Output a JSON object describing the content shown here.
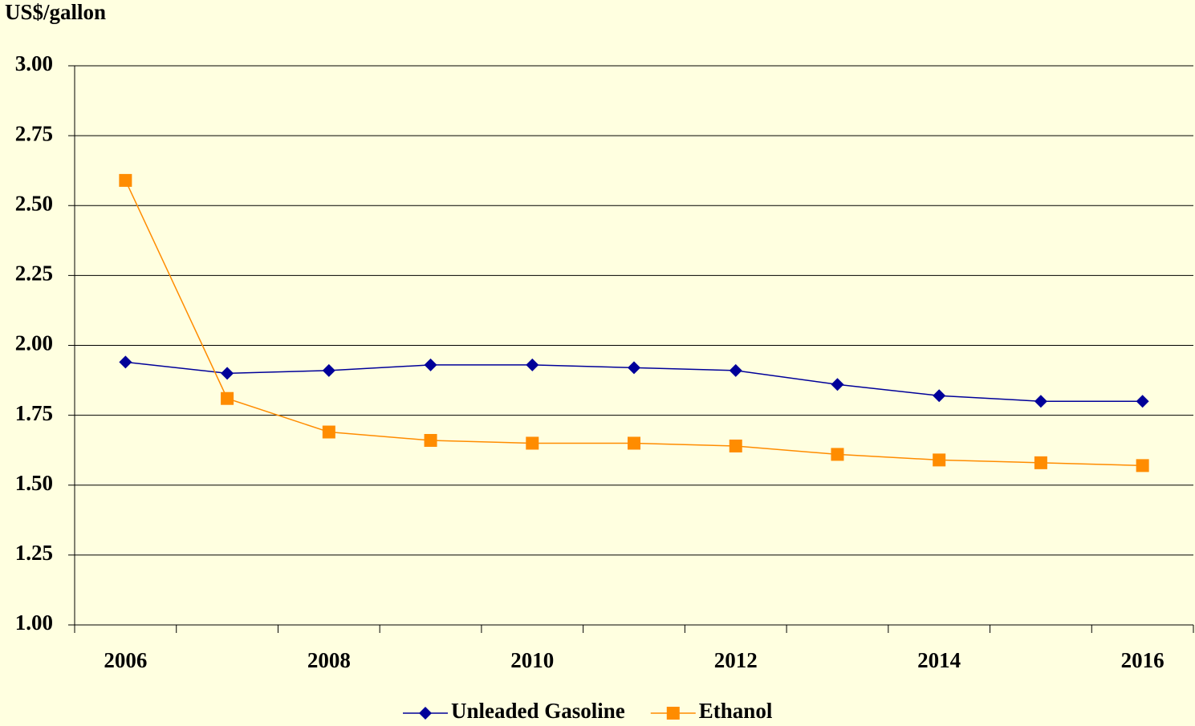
{
  "chart_data": {
    "type": "line",
    "y_label": "US$/gallon",
    "categories": [
      "2006",
      null,
      "2008",
      null,
      "2010",
      null,
      "2012",
      null,
      "2014",
      null,
      "2016"
    ],
    "series": [
      {
        "name": "Unleaded Gasoline",
        "color": "#000099",
        "marker": "diamond",
        "values": [
          1.94,
          1.9,
          1.91,
          1.93,
          1.93,
          1.92,
          1.91,
          1.86,
          1.82,
          1.8,
          1.8
        ]
      },
      {
        "name": "Ethanol",
        "color": "#ff8c00",
        "marker": "square",
        "values": [
          2.59,
          1.81,
          1.69,
          1.66,
          1.65,
          1.65,
          1.64,
          1.61,
          1.59,
          1.58,
          1.57
        ]
      }
    ],
    "ylim": [
      1,
      3
    ],
    "yticks": [
      {
        "value": 1,
        "label": "1.00"
      },
      {
        "value": 1.25,
        "label": "1.25"
      },
      {
        "value": 1.5,
        "label": "1.50"
      },
      {
        "value": 1.75,
        "label": "1.75"
      },
      {
        "value": 2,
        "label": "2.00"
      },
      {
        "value": 2.25,
        "label": "2.25"
      },
      {
        "value": 2.5,
        "label": "2.50"
      },
      {
        "value": 2.75,
        "label": "2.75"
      },
      {
        "value": 3,
        "label": "3.00"
      }
    ],
    "grid": true,
    "legend": "bottom"
  }
}
